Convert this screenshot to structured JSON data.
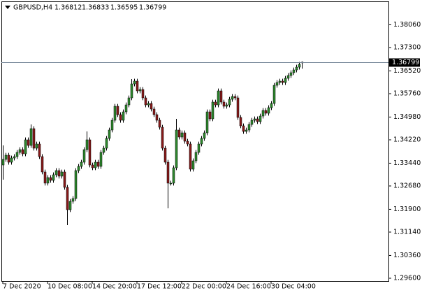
{
  "chart_data": {
    "type": "candlestick",
    "title": "GBPUSD,H4",
    "categories": [
      "7 Dec 2020",
      null,
      null,
      null,
      null,
      null,
      null,
      null,
      null,
      null,
      null,
      null,
      null,
      null,
      null,
      null,
      "10 Dec 08:00",
      null,
      null,
      null,
      null,
      null,
      null,
      null,
      null,
      null,
      null,
      null,
      null,
      null,
      null,
      null,
      "14 Dec 20:00",
      null,
      null,
      null,
      null,
      null,
      null,
      null,
      null,
      null,
      null,
      null,
      null,
      null,
      null,
      null,
      "17 Dec 12:00",
      null,
      null,
      null,
      null,
      null,
      null,
      null,
      null,
      null,
      null,
      null,
      null,
      null,
      null,
      null,
      "22 Dec 00:00",
      null,
      null,
      null,
      null,
      null,
      null,
      null,
      null,
      null,
      null,
      null,
      null,
      null,
      null,
      null,
      "24 Dec 16:00",
      null,
      null,
      null,
      null,
      null,
      null,
      null,
      null,
      null,
      null,
      null,
      null,
      null,
      null,
      null,
      "30 Dec 04:00",
      null,
      null,
      null,
      null,
      null,
      null,
      null,
      null,
      null,
      null,
      null
    ],
    "open": [
      1.3338,
      1.33567,
      1.33707,
      1.33473,
      1.33613,
      1.3366,
      1.338,
      1.33893,
      1.33753,
      1.3422,
      1.34033,
      1.34593,
      1.3394,
      1.3408,
      1.3366,
      1.33147,
      1.32774,
      1.3296,
      1.32867,
      1.33053,
      1.33193,
      1.33007,
      1.33147,
      1.32634,
      1.31887,
      1.32167,
      1.3226,
      1.33193,
      1.33333,
      1.33473,
      1.33893,
      1.3422,
      1.3338,
      1.33287,
      1.33473,
      1.33333,
      1.338,
      1.3394,
      1.34267,
      1.34547,
      1.34873,
      1.3534,
      1.3506,
      1.34873,
      1.35153,
      1.35386,
      1.3562,
      1.36086,
      1.3618,
      1.35853,
      1.359,
      1.3562,
      1.35386,
      1.35433,
      1.35247,
      1.3506,
      1.34873,
      1.3464,
      1.3394,
      1.33473,
      1.32774,
      1.32774,
      1.33287,
      1.34547,
      1.34313,
      1.34453,
      1.34173,
      1.3408,
      1.3324,
      1.3352,
      1.338,
      1.3408,
      1.34267,
      1.34453,
      1.35153,
      1.3492,
      1.3548,
      1.35386,
      1.35853,
      1.3548,
      1.3534,
      1.35386,
      1.35573,
      1.35666,
      1.3562,
      1.34967,
      1.34687,
      1.345,
      1.34547,
      1.34733,
      1.34873,
      1.3492,
      1.34827,
      1.35013,
      1.352,
      1.35107,
      1.35293,
      1.35433,
      1.3604,
      1.36133,
      1.3618,
      1.36133,
      1.36273,
      1.36366,
      1.3646,
      1.36553,
      1.36646,
      1.36812
    ],
    "high": [
      1.34033,
      1.33787,
      1.33787,
      1.33693,
      1.3374,
      1.3388,
      1.33973,
      1.33973,
      1.343,
      1.343,
      1.34733,
      1.34673,
      1.3416,
      1.3416,
      1.3374,
      1.33227,
      1.3304,
      1.3304,
      1.33133,
      1.33273,
      1.33273,
      1.33227,
      1.33227,
      1.32714,
      1.32247,
      1.3234,
      1.33273,
      1.33413,
      1.33553,
      1.33973,
      1.345,
      1.343,
      1.3346,
      1.33553,
      1.33553,
      1.3388,
      1.3402,
      1.34347,
      1.34627,
      1.34953,
      1.3542,
      1.3542,
      1.3514,
      1.35233,
      1.35466,
      1.357,
      1.3625,
      1.3626,
      1.3626,
      1.3598,
      1.3598,
      1.357,
      1.35513,
      1.35513,
      1.35327,
      1.3514,
      1.34953,
      1.3472,
      1.3402,
      1.33553,
      1.32854,
      1.33367,
      1.3492,
      1.34627,
      1.34533,
      1.34533,
      1.34253,
      1.3416,
      1.336,
      1.3388,
      1.3416,
      1.34347,
      1.34533,
      1.35233,
      1.35233,
      1.3556,
      1.3556,
      1.35933,
      1.35933,
      1.3556,
      1.35466,
      1.35653,
      1.35746,
      1.35746,
      1.357,
      1.35047,
      1.34767,
      1.34627,
      1.34813,
      1.34953,
      1.35,
      1.35,
      1.35093,
      1.3528,
      1.3528,
      1.35373,
      1.35513,
      1.3612,
      1.36213,
      1.3626,
      1.3626,
      1.36353,
      1.36446,
      1.3654,
      1.36633,
      1.36726,
      1.3682,
      1.36833
    ],
    "low": [
      1.3289,
      1.33487,
      1.33393,
      1.33393,
      1.33533,
      1.3358,
      1.3372,
      1.33673,
      1.33673,
      1.33953,
      1.33953,
      1.3386,
      1.3386,
      1.3358,
      1.33067,
      1.32694,
      1.32694,
      1.32787,
      1.32787,
      1.32973,
      1.32927,
      1.32927,
      1.32554,
      1.31374,
      1.31807,
      1.32087,
      1.3218,
      1.33113,
      1.33253,
      1.33393,
      1.33813,
      1.333,
      1.33207,
      1.33207,
      1.33253,
      1.33253,
      1.3372,
      1.3386,
      1.34187,
      1.34467,
      1.34793,
      1.3498,
      1.34793,
      1.34793,
      1.35073,
      1.35306,
      1.3554,
      1.36006,
      1.35773,
      1.35773,
      1.3554,
      1.35306,
      1.35306,
      1.35167,
      1.3498,
      1.34793,
      1.3456,
      1.3386,
      1.33393,
      1.31934,
      1.32694,
      1.32694,
      1.33207,
      1.34233,
      1.34233,
      1.34093,
      1.34,
      1.3316,
      1.3316,
      1.3344,
      1.3372,
      1.34,
      1.34187,
      1.34373,
      1.3484,
      1.3484,
      1.35306,
      1.35306,
      1.354,
      1.3526,
      1.3526,
      1.35306,
      1.35493,
      1.3554,
      1.34887,
      1.34607,
      1.3442,
      1.3442,
      1.34467,
      1.34653,
      1.34793,
      1.34747,
      1.34747,
      1.34933,
      1.35027,
      1.35027,
      1.35213,
      1.35353,
      1.3596,
      1.36053,
      1.36053,
      1.36053,
      1.36193,
      1.36286,
      1.3638,
      1.36473,
      1.36566,
      1.36595
    ],
    "close": [
      1.33567,
      1.33707,
      1.33473,
      1.33613,
      1.3366,
      1.338,
      1.33893,
      1.33753,
      1.3422,
      1.34033,
      1.34593,
      1.3394,
      1.3408,
      1.3366,
      1.33147,
      1.32774,
      1.3296,
      1.32867,
      1.33053,
      1.33193,
      1.33007,
      1.33147,
      1.32634,
      1.31887,
      1.32167,
      1.3226,
      1.33193,
      1.33333,
      1.33473,
      1.33893,
      1.3422,
      1.3338,
      1.33287,
      1.33473,
      1.33333,
      1.338,
      1.3394,
      1.34267,
      1.34547,
      1.34873,
      1.3534,
      1.3506,
      1.34873,
      1.35153,
      1.35386,
      1.3562,
      1.36086,
      1.3618,
      1.35853,
      1.359,
      1.3562,
      1.35386,
      1.35433,
      1.35247,
      1.3506,
      1.34873,
      1.3464,
      1.3394,
      1.33473,
      1.32774,
      1.32774,
      1.33287,
      1.34547,
      1.34313,
      1.34453,
      1.34173,
      1.3408,
      1.3324,
      1.3352,
      1.338,
      1.3408,
      1.34267,
      1.34453,
      1.35153,
      1.3492,
      1.3548,
      1.35386,
      1.35853,
      1.3548,
      1.3534,
      1.35386,
      1.35573,
      1.35666,
      1.3562,
      1.34967,
      1.34687,
      1.345,
      1.34547,
      1.34733,
      1.34873,
      1.3492,
      1.34827,
      1.35013,
      1.352,
      1.35107,
      1.35293,
      1.35433,
      1.3604,
      1.36133,
      1.3618,
      1.36133,
      1.36273,
      1.36366,
      1.3646,
      1.36553,
      1.36646,
      1.3674,
      1.36799
    ],
    "up_color": "#2e8b2e",
    "down_color": "#8b1a1a",
    "wick_color": "#000000",
    "price_line_color": "#778899",
    "ylim": [
      1.29507,
      1.3884
    ],
    "yticks": [
      {
        "value": 1.3806,
        "label": "1.38060"
      },
      {
        "value": 1.373,
        "label": "1.37300"
      },
      {
        "value": 1.3652,
        "label": "1.36520"
      },
      {
        "value": 1.3576,
        "label": "1.35760"
      },
      {
        "value": 1.3498,
        "label": "1.34980"
      },
      {
        "value": 1.3422,
        "label": "1.34220"
      },
      {
        "value": 1.3344,
        "label": "1.33440"
      },
      {
        "value": 1.3268,
        "label": "1.32680"
      },
      {
        "value": 1.319,
        "label": "1.31900"
      },
      {
        "value": 1.3114,
        "label": "1.31140"
      },
      {
        "value": 1.3036,
        "label": "1.30360"
      },
      {
        "value": 1.296,
        "label": "1.29600"
      }
    ]
  }
}
